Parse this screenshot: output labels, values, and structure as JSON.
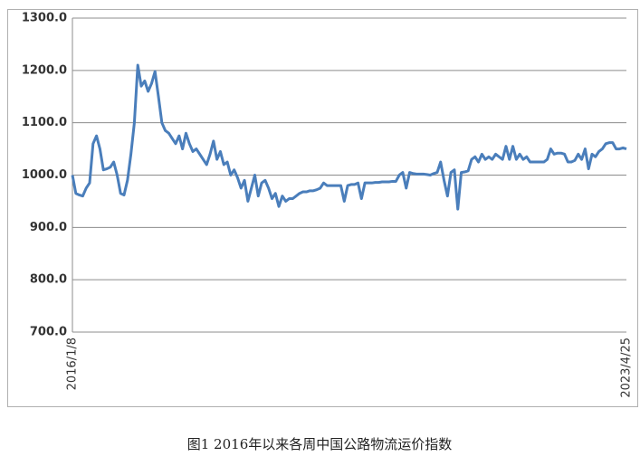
{
  "chart_data": {
    "type": "line",
    "caption": "图1 2016年以来各周中国公路物流运价指数",
    "categories": [
      "2016/1/8",
      null,
      null,
      null,
      null,
      null,
      null,
      null,
      null,
      null,
      null,
      null,
      null,
      null,
      null,
      null,
      null,
      null,
      null,
      null,
      null,
      null,
      null,
      null,
      null,
      null,
      null,
      null,
      null,
      null,
      null,
      null,
      null,
      null,
      null,
      null,
      null,
      null,
      null,
      null,
      null,
      null,
      null,
      null,
      null,
      null,
      null,
      null,
      null,
      null,
      null,
      null,
      null,
      null,
      null,
      null,
      null,
      null,
      null,
      null,
      null,
      null,
      null,
      null,
      null,
      null,
      null,
      null,
      null,
      null,
      null,
      null,
      null,
      null,
      null,
      null,
      null,
      null,
      null,
      null,
      null,
      null,
      null,
      null,
      null,
      null,
      null,
      null,
      null,
      null,
      null,
      null,
      null,
      null,
      null,
      null,
      null,
      null,
      null,
      null,
      null,
      null,
      null,
      null,
      null,
      null,
      null,
      null,
      null,
      null,
      null,
      null,
      null,
      null,
      null,
      null,
      null,
      null,
      null,
      null,
      null,
      null,
      null,
      null,
      null,
      null,
      null,
      null,
      null,
      null,
      null,
      null,
      null,
      null,
      null,
      null,
      null,
      null,
      null,
      null,
      null,
      null,
      null,
      null,
      null,
      null,
      null,
      null,
      null,
      null,
      null,
      null,
      null,
      null,
      null,
      null,
      null,
      null,
      null,
      null,
      null,
      "2023/4/25"
    ],
    "values": [
      1000,
      965,
      962,
      960,
      975,
      985,
      1060,
      1075,
      1050,
      1010,
      1012,
      1015,
      1025,
      1000,
      965,
      962,
      990,
      1040,
      1100,
      1210,
      1170,
      1180,
      1160,
      1175,
      1198,
      1150,
      1100,
      1085,
      1080,
      1070,
      1060,
      1075,
      1050,
      1080,
      1060,
      1045,
      1050,
      1040,
      1030,
      1020,
      1040,
      1065,
      1030,
      1045,
      1020,
      1025,
      1000,
      1010,
      995,
      975,
      990,
      950,
      975,
      1000,
      960,
      985,
      990,
      975,
      955,
      965,
      940,
      960,
      950,
      955,
      955,
      960,
      965,
      968,
      968,
      970,
      970,
      972,
      975,
      985,
      980,
      980,
      980,
      980,
      980,
      950,
      980,
      982,
      982,
      985,
      955,
      985,
      985,
      985,
      986,
      986,
      987,
      987,
      987,
      988,
      988,
      1000,
      1005,
      975,
      1005,
      1003,
      1002,
      1002,
      1002,
      1001,
      1000,
      1003,
      1005,
      1025,
      990,
      960,
      1005,
      1010,
      935,
      1005,
      1006,
      1008,
      1030,
      1035,
      1025,
      1040,
      1030,
      1035,
      1030,
      1040,
      1035,
      1030,
      1055,
      1030,
      1055,
      1030,
      1040,
      1030,
      1035,
      1025,
      1025,
      1025,
      1025,
      1025,
      1030,
      1050,
      1040,
      1042,
      1042,
      1040,
      1025,
      1025,
      1028,
      1040,
      1030,
      1050,
      1012,
      1040,
      1035,
      1045,
      1050,
      1060,
      1062,
      1062,
      1050,
      1050,
      1052,
      1050
    ],
    "color": "#4a7ebb",
    "ylim": [
      700,
      1300
    ],
    "yticks": [
      {
        "value": 700,
        "label": "700.0"
      },
      {
        "value": 800,
        "label": "800.0"
      },
      {
        "value": 900,
        "label": "900.0"
      },
      {
        "value": 1000,
        "label": "1000.0"
      },
      {
        "value": 1100,
        "label": "1100.0"
      },
      {
        "value": 1200,
        "label": "1200.0"
      },
      {
        "value": 1300,
        "label": "1300.0"
      }
    ],
    "grid": true
  }
}
